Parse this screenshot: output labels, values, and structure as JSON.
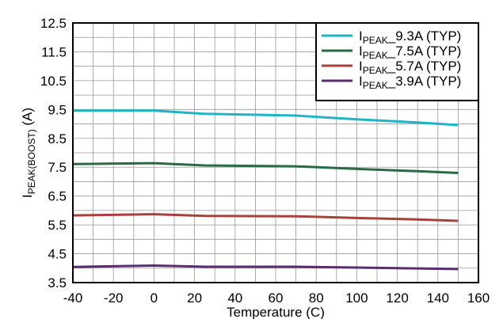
{
  "chart_data": {
    "type": "line",
    "title": "",
    "xlabel": "Temperature (C)",
    "ylabel": {
      "main": "I",
      "sub": "PEAK(BOOST)",
      "rest": " (A)"
    },
    "xlim": [
      -40,
      160
    ],
    "ylim": [
      3.5,
      12.5
    ],
    "xticks": [
      -40,
      -20,
      0,
      20,
      40,
      60,
      80,
      100,
      120,
      140,
      160
    ],
    "yticks": [
      "12.5",
      "11.5",
      "10.5",
      "9.5",
      "8.5",
      "7.5",
      "6.5",
      "5.5",
      "4.5",
      "3.5"
    ],
    "ytick_values": [
      12.5,
      11.5,
      10.5,
      9.5,
      8.5,
      7.5,
      6.5,
      5.5,
      4.5,
      3.5
    ],
    "x_minor_step": 10,
    "y_minor_step": 0.5,
    "grid": true,
    "legend_position": "top-right",
    "series": [
      {
        "name_main": "I",
        "name_sub": "PEAK",
        "name_rest": "_9.3A (TYP)",
        "color": "#1fb5c8",
        "x": [
          -40,
          0,
          25,
          70,
          100,
          130,
          150
        ],
        "y": [
          9.46,
          9.46,
          9.35,
          9.29,
          9.16,
          9.05,
          8.96
        ]
      },
      {
        "name_main": "I",
        "name_sub": "PEAK",
        "name_rest": "_7.5A (TYP)",
        "color": "#2a6b45",
        "x": [
          -40,
          0,
          25,
          70,
          100,
          130,
          150
        ],
        "y": [
          7.61,
          7.64,
          7.56,
          7.53,
          7.44,
          7.36,
          7.3
        ]
      },
      {
        "name_main": "I",
        "name_sub": "PEAK",
        "name_rest": "_5.7A (TYP)",
        "color": "#a8413a",
        "x": [
          -40,
          0,
          25,
          70,
          100,
          130,
          150
        ],
        "y": [
          5.83,
          5.87,
          5.81,
          5.8,
          5.74,
          5.69,
          5.64
        ]
      },
      {
        "name_main": "I",
        "name_sub": "PEAK",
        "name_rest": "_3.9A (TYP)",
        "color": "#5a2d6e",
        "x": [
          -40,
          0,
          25,
          70,
          100,
          130,
          150
        ],
        "y": [
          4.04,
          4.09,
          4.05,
          4.05,
          4.02,
          3.99,
          3.97
        ]
      }
    ]
  }
}
